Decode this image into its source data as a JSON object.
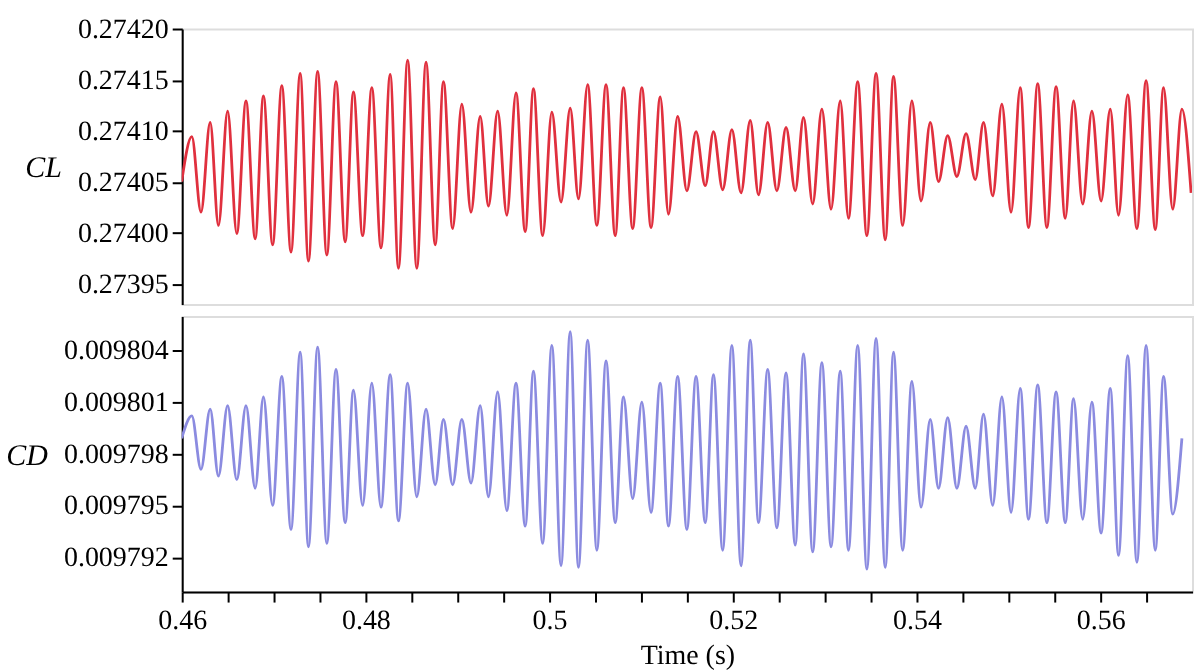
{
  "chart_data": [
    {
      "type": "line",
      "ylabel": "CL",
      "tick_labels": "y",
      "grid": false,
      "xlim": [
        0.46,
        0.57
      ],
      "ylim": [
        0.27393,
        0.2742
      ],
      "yticks": [
        {
          "value": 0.2742,
          "label": "0.27420"
        },
        0.27415,
        {
          "value": 0.2741,
          "label": "0.27410"
        },
        0.27405,
        {
          "value": 0.274,
          "label": "0.27400"
        },
        0.27395
      ],
      "x": [
        0.46,
        0.4611,
        0.4621,
        0.4631,
        0.464,
        0.465,
        0.466,
        0.467,
        0.468,
        0.4689,
        0.4699,
        0.4709,
        0.4719,
        0.4729,
        0.4738,
        0.4748,
        0.4758,
        0.4768,
        0.4778,
        0.4787,
        0.4797,
        0.4807,
        0.4817,
        0.4827,
        0.4836,
        0.4846,
        0.4856,
        0.4866,
        0.4876,
        0.4885,
        0.4895,
        0.4905,
        0.4915,
        0.4925,
        0.4934,
        0.4944,
        0.4954,
        0.4964,
        0.4974,
        0.4983,
        0.4993,
        0.5003,
        0.5013,
        0.5023,
        0.5032,
        0.5042,
        0.5052,
        0.5062,
        0.5072,
        0.5081,
        0.5091,
        0.5101,
        0.5111,
        0.5121,
        0.513,
        0.514,
        0.515,
        0.516,
        0.517,
        0.5179,
        0.5189,
        0.5199,
        0.5209,
        0.5219,
        0.5228,
        0.5238,
        0.5248,
        0.5258,
        0.5268,
        0.5277,
        0.5287,
        0.5297,
        0.5307,
        0.5317,
        0.5326,
        0.5336,
        0.5346,
        0.5356,
        0.5366,
        0.5375,
        0.5385,
        0.5395,
        0.5405,
        0.5415,
        0.5424,
        0.5434,
        0.5444,
        0.5454,
        0.5464,
        0.5473,
        0.5483,
        0.5493,
        0.5503,
        0.5513,
        0.5522,
        0.5532,
        0.5542,
        0.5552,
        0.5562,
        0.5571,
        0.5581,
        0.5591,
        0.5601,
        0.5611,
        0.562,
        0.563,
        0.564,
        0.565,
        0.566,
        0.5669,
        0.5679,
        0.5689,
        0.5699
      ],
      "series": [
        {
          "color": "#e0303e",
          "values": [
            0.27405,
            0.274094,
            0.27402,
            0.274108,
            0.274007,
            0.274119,
            0.273999,
            0.274129,
            0.273994,
            0.274134,
            0.273988,
            0.274144,
            0.273981,
            0.274156,
            0.273972,
            0.274158,
            0.273978,
            0.274148,
            0.273991,
            0.274138,
            0.273997,
            0.274142,
            0.273985,
            0.274155,
            0.273965,
            0.274169,
            0.273965,
            0.274167,
            0.273988,
            0.274148,
            0.274004,
            0.274126,
            0.27402,
            0.274114,
            0.274026,
            0.274119,
            0.274017,
            0.274137,
            0.274001,
            0.274141,
            0.273997,
            0.274118,
            0.27403,
            0.274122,
            0.274033,
            0.274145,
            0.274007,
            0.274145,
            0.273997,
            0.274142,
            0.274004,
            0.274142,
            0.274005,
            0.274133,
            0.274018,
            0.274114,
            0.274041,
            0.274099,
            0.274046,
            0.274099,
            0.274042,
            0.274101,
            0.274039,
            0.27411,
            0.274037,
            0.274108,
            0.274041,
            0.274103,
            0.274041,
            0.274113,
            0.274028,
            0.274121,
            0.274023,
            0.274129,
            0.274014,
            0.274148,
            0.273997,
            0.274156,
            0.273993,
            0.274153,
            0.274007,
            0.274129,
            0.274031,
            0.274108,
            0.27405,
            0.274095,
            0.274055,
            0.274097,
            0.274052,
            0.274108,
            0.274036,
            0.274126,
            0.27402,
            0.274142,
            0.274005,
            0.274146,
            0.274005,
            0.274143,
            0.274014,
            0.274129,
            0.274028,
            0.274119,
            0.274031,
            0.274121,
            0.274017,
            0.274135,
            0.274004,
            0.274149,
            0.274003,
            0.274142,
            0.274023,
            0.274121,
            0.274039
          ]
        }
      ]
    },
    {
      "type": "line",
      "ylabel": "CD",
      "xlabel": "Time (s)",
      "grid": false,
      "xlim": [
        0.46,
        0.57
      ],
      "ylim": [
        0.00979,
        0.009806
      ],
      "xticks": [
        0.46,
        {
          "value": 0.465,
          "label": null
        },
        {
          "value": 0.47,
          "label": null
        },
        {
          "value": 0.475,
          "label": null
        },
        0.48,
        {
          "value": 0.485,
          "label": null
        },
        {
          "value": 0.49,
          "label": null
        },
        {
          "value": 0.495,
          "label": null
        },
        0.5,
        {
          "value": 0.505,
          "label": null
        },
        {
          "value": 0.51,
          "label": null
        },
        {
          "value": 0.515,
          "label": null
        },
        0.52,
        {
          "value": 0.525,
          "label": null
        },
        {
          "value": 0.53,
          "label": null
        },
        {
          "value": 0.535,
          "label": null
        },
        0.54,
        {
          "value": 0.545,
          "label": null
        },
        {
          "value": 0.55,
          "label": null
        },
        {
          "value": 0.555,
          "label": null
        },
        0.56,
        {
          "value": 0.565,
          "label": null
        }
      ],
      "yticks": [
        0.009804,
        0.009801,
        0.009798,
        0.009795,
        0.009792
      ],
      "x": [
        0.46,
        0.4611,
        0.4621,
        0.4631,
        0.464,
        0.465,
        0.466,
        0.467,
        0.468,
        0.4689,
        0.4699,
        0.4709,
        0.4719,
        0.4729,
        0.4738,
        0.4748,
        0.4758,
        0.4768,
        0.4778,
        0.4787,
        0.4797,
        0.4807,
        0.4817,
        0.4827,
        0.4836,
        0.4846,
        0.4856,
        0.4866,
        0.4876,
        0.4885,
        0.4895,
        0.4905,
        0.4915,
        0.4925,
        0.4934,
        0.4944,
        0.4954,
        0.4964,
        0.4974,
        0.4983,
        0.4993,
        0.5003,
        0.5013,
        0.5023,
        0.5032,
        0.5042,
        0.5052,
        0.5062,
        0.5072,
        0.5081,
        0.5091,
        0.5101,
        0.5111,
        0.5121,
        0.513,
        0.514,
        0.515,
        0.516,
        0.517,
        0.5179,
        0.5189,
        0.5199,
        0.5209,
        0.5219,
        0.5228,
        0.5238,
        0.5248,
        0.5258,
        0.5268,
        0.5277,
        0.5287,
        0.5297,
        0.5307,
        0.5317,
        0.5326,
        0.5336,
        0.5346,
        0.5356,
        0.5366,
        0.5375,
        0.5385,
        0.5395,
        0.5405,
        0.5415,
        0.5424,
        0.5434,
        0.5444,
        0.5454,
        0.5464,
        0.5473,
        0.5483,
        0.5493,
        0.5503,
        0.5513,
        0.5522,
        0.5532,
        0.5542,
        0.5552,
        0.5562,
        0.5571,
        0.5581,
        0.5591,
        0.5601,
        0.5611,
        0.562,
        0.563,
        0.564,
        0.565,
        0.566,
        0.5669,
        0.5679,
        0.5689
      ],
      "series": [
        {
          "color": "#8b8be0",
          "values": [
            0.0097989,
            0.0098002,
            0.0097971,
            0.0098006,
            0.0097967,
            0.0098008,
            0.0097965,
            0.0098008,
            0.009796,
            0.0098013,
            0.009795,
            0.0098025,
            0.0097936,
            0.0098039,
            0.0097926,
            0.0098042,
            0.0097928,
            0.0098029,
            0.009794,
            0.0098017,
            0.009795,
            0.0098021,
            0.0097949,
            0.0098026,
            0.0097941,
            0.0098021,
            0.0097955,
            0.0098006,
            0.0097962,
            0.0098,
            0.0097962,
            0.0098,
            0.0097963,
            0.0098008,
            0.0097955,
            0.0098016,
            0.0097947,
            0.0098021,
            0.0097938,
            0.0098028,
            0.0097928,
            0.0098043,
            0.0097915,
            0.0098051,
            0.0097914,
            0.0098046,
            0.0097924,
            0.0098034,
            0.009794,
            0.0098013,
            0.0097954,
            0.009801,
            0.0097946,
            0.0098021,
            0.0097938,
            0.0098025,
            0.0097936,
            0.0098025,
            0.009794,
            0.0098026,
            0.0097924,
            0.0098043,
            0.0097915,
            0.0098046,
            0.009794,
            0.0098029,
            0.0097937,
            0.0098027,
            0.0097927,
            0.0098038,
            0.0097923,
            0.0098033,
            0.0097926,
            0.0098028,
            0.0097924,
            0.0098043,
            0.0097913,
            0.0098047,
            0.0097914,
            0.0098039,
            0.0097924,
            0.0098022,
            0.0097949,
            0.0098,
            0.009796,
            0.0098001,
            0.009796,
            0.0097996,
            0.009796,
            0.0098003,
            0.009795,
            0.0098013,
            0.0097946,
            0.0098018,
            0.0097942,
            0.009802,
            0.009794,
            0.0098016,
            0.009794,
            0.0098012,
            0.0097942,
            0.009801,
            0.0097934,
            0.0098018,
            0.0097921,
            0.0098037,
            0.0097917,
            0.0098043,
            0.0097924,
            0.0098025,
            0.0097945,
            0.0097989
          ]
        }
      ]
    }
  ]
}
